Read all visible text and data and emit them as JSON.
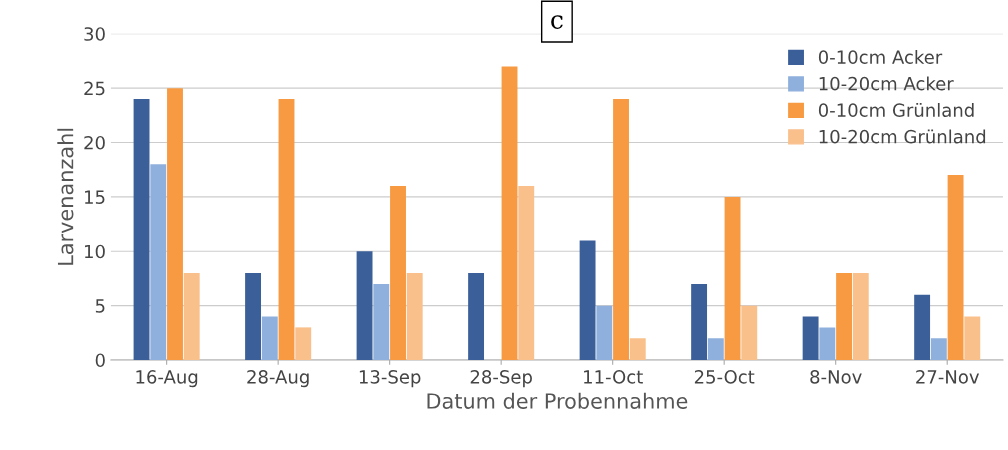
{
  "chart_data": {
    "type": "bar",
    "title": "c",
    "xlabel": "Datum der Probennahme",
    "ylabel": "Larvenanzahl",
    "categories": [
      "16-Aug",
      "28-Aug",
      "13-Sep",
      "28-Sep",
      "11-Oct",
      "25-Oct",
      "8-Nov",
      "27-Nov"
    ],
    "series": [
      {
        "name": "0-10cm Acker",
        "color": "#3b5f99",
        "values": [
          24,
          8,
          10,
          8,
          11,
          7,
          4,
          6
        ]
      },
      {
        "name": "10-20cm Acker",
        "color": "#8fb0dc",
        "values": [
          18,
          4,
          7,
          0,
          5,
          2,
          3,
          2
        ]
      },
      {
        "name": "0-10cm Grünland",
        "color": "#f79a42",
        "values": [
          25,
          24,
          16,
          27,
          24,
          15,
          8,
          17
        ]
      },
      {
        "name": "10-20cm Grünland",
        "color": "#f9c08c",
        "values": [
          8,
          3,
          8,
          16,
          2,
          5,
          8,
          4
        ]
      }
    ],
    "ylim": [
      0,
      30
    ],
    "yticks": [
      0,
      5,
      10,
      15,
      20,
      25,
      30
    ],
    "grid": "y",
    "legend": "top right"
  }
}
